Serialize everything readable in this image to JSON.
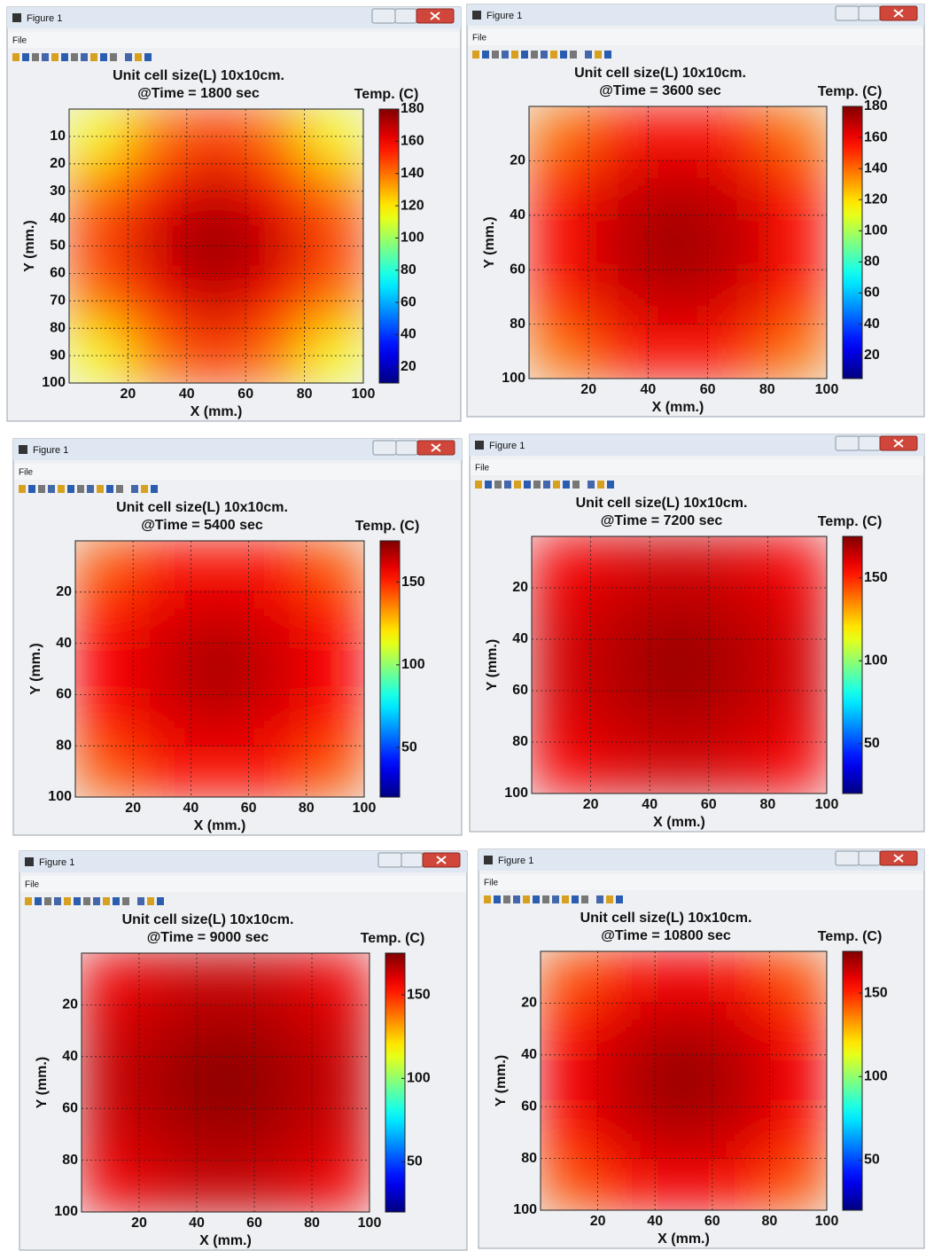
{
  "windows": [
    {
      "title": "Figure 1",
      "menu": "File"
    },
    {
      "title": "Figure 1",
      "menu": "File"
    },
    {
      "title": "Figure 1",
      "menu": "File"
    },
    {
      "title": "Figure 1",
      "menu": "File"
    },
    {
      "title": "Figure 1",
      "menu": "File"
    },
    {
      "title": "Figure 1",
      "menu": "File"
    }
  ],
  "chart_data": [
    {
      "type": "heatmap",
      "title": "Unit cell size(L) 10x10cm.",
      "subtitle": "@Time = 1800 sec",
      "xlabel": "X (mm.)",
      "ylabel": "Y (mm.)",
      "colorbar_label": "Temp. (C)",
      "colormap": "jet",
      "grid": true,
      "y_reversed": true,
      "x": [
        10,
        30,
        50,
        70,
        90
      ],
      "y": [
        10,
        30,
        50,
        70,
        90
      ],
      "z": [
        [
          115,
          140,
          150,
          140,
          115
        ],
        [
          140,
          160,
          168,
          160,
          140
        ],
        [
          150,
          168,
          178,
          168,
          150
        ],
        [
          140,
          160,
          168,
          160,
          140
        ],
        [
          115,
          140,
          150,
          140,
          115
        ]
      ],
      "xlim": [
        0,
        100
      ],
      "ylim": [
        0,
        100
      ],
      "xticks": [
        20,
        40,
        60,
        80,
        100
      ],
      "yticks": [
        10,
        20,
        30,
        40,
        50,
        60,
        70,
        80,
        90,
        100
      ],
      "clim": [
        10,
        180
      ],
      "cticks": [
        20,
        40,
        60,
        80,
        100,
        120,
        140,
        160,
        180
      ]
    },
    {
      "type": "heatmap",
      "title": "Unit cell size(L) 10x10cm.",
      "subtitle": "@Time = 3600 sec",
      "xlabel": "X (mm.)",
      "ylabel": "Y (mm.)",
      "colorbar_label": "Temp. (C)",
      "colormap": "jet",
      "grid": true,
      "y_reversed": true,
      "x": [
        10,
        30,
        50,
        70,
        90
      ],
      "y": [
        10,
        30,
        50,
        70,
        90
      ],
      "z": [
        [
          138,
          152,
          158,
          152,
          138
        ],
        [
          152,
          165,
          170,
          165,
          152
        ],
        [
          158,
          170,
          176,
          170,
          158
        ],
        [
          152,
          165,
          170,
          165,
          152
        ],
        [
          138,
          152,
          158,
          152,
          138
        ]
      ],
      "xlim": [
        0,
        100
      ],
      "ylim": [
        0,
        100
      ],
      "xticks": [
        20,
        40,
        60,
        80,
        100
      ],
      "yticks": [
        20,
        40,
        60,
        80,
        100
      ],
      "clim": [
        5,
        180
      ],
      "cticks": [
        20,
        40,
        60,
        80,
        100,
        120,
        140,
        160,
        180
      ]
    },
    {
      "type": "heatmap",
      "title": "Unit cell size(L) 10x10cm.",
      "subtitle": "@Time = 5400 sec",
      "xlabel": "X (mm.)",
      "ylabel": "Y (mm.)",
      "colorbar_label": "Temp. (C)",
      "colormap": "jet",
      "grid": true,
      "y_reversed": true,
      "x": [
        10,
        30,
        50,
        70,
        90
      ],
      "y": [
        10,
        30,
        50,
        70,
        90
      ],
      "z": [
        [
          142,
          152,
          155,
          152,
          142
        ],
        [
          152,
          160,
          164,
          160,
          152
        ],
        [
          155,
          164,
          170,
          164,
          155
        ],
        [
          152,
          160,
          164,
          160,
          152
        ],
        [
          142,
          152,
          155,
          152,
          142
        ]
      ],
      "xlim": [
        0,
        100
      ],
      "ylim": [
        0,
        100
      ],
      "xticks": [
        20,
        40,
        60,
        80,
        100
      ],
      "yticks": [
        20,
        40,
        60,
        80,
        100
      ],
      "clim": [
        20,
        175
      ],
      "cticks": [
        50,
        100,
        150
      ]
    },
    {
      "type": "heatmap",
      "title": "Unit cell size(L) 10x10cm.",
      "subtitle": "@Time = 7200 sec",
      "xlabel": "X (mm.)",
      "ylabel": "Y (mm.)",
      "colorbar_label": "Temp. (C)",
      "colormap": "jet",
      "grid": true,
      "y_reversed": true,
      "x": [
        10,
        30,
        50,
        70,
        90
      ],
      "y": [
        10,
        30,
        50,
        70,
        90
      ],
      "z": [
        [
          155,
          160,
          162,
          160,
          155
        ],
        [
          160,
          165,
          168,
          165,
          160
        ],
        [
          162,
          168,
          172,
          168,
          162
        ],
        [
          160,
          165,
          168,
          165,
          160
        ],
        [
          155,
          160,
          162,
          160,
          155
        ]
      ],
      "xlim": [
        0,
        100
      ],
      "ylim": [
        0,
        100
      ],
      "xticks": [
        20,
        40,
        60,
        80,
        100
      ],
      "yticks": [
        20,
        40,
        60,
        80,
        100
      ],
      "clim": [
        20,
        175
      ],
      "cticks": [
        50,
        100,
        150
      ]
    },
    {
      "type": "heatmap",
      "title": "Unit cell size(L) 10x10cm.",
      "subtitle": "@Time = 9000 sec",
      "xlabel": "X (mm.)",
      "ylabel": "Y (mm.)",
      "colorbar_label": "Temp. (C)",
      "colormap": "jet",
      "grid": true,
      "y_reversed": true,
      "x": [
        10,
        30,
        50,
        70,
        90
      ],
      "y": [
        10,
        30,
        50,
        70,
        90
      ],
      "z": [
        [
          157,
          162,
          164,
          162,
          157
        ],
        [
          162,
          167,
          170,
          167,
          162
        ],
        [
          164,
          170,
          174,
          170,
          164
        ],
        [
          162,
          167,
          170,
          167,
          162
        ],
        [
          157,
          162,
          164,
          162,
          157
        ]
      ],
      "xlim": [
        0,
        100
      ],
      "ylim": [
        0,
        100
      ],
      "xticks": [
        20,
        40,
        60,
        80,
        100
      ],
      "yticks": [
        20,
        40,
        60,
        80,
        100
      ],
      "clim": [
        20,
        175
      ],
      "cticks": [
        50,
        100,
        150
      ]
    },
    {
      "type": "heatmap",
      "title": "Unit cell size(L) 10x10cm.",
      "subtitle": "@Time = 10800 sec",
      "xlabel": "X (mm.)",
      "ylabel": "Y (mm.)",
      "colorbar_label": "Temp. (C)",
      "colormap": "jet",
      "grid": true,
      "y_reversed": true,
      "x": [
        10,
        30,
        50,
        70,
        90
      ],
      "y": [
        10,
        30,
        50,
        70,
        90
      ],
      "z": [
        [
          143,
          153,
          157,
          153,
          143
        ],
        [
          153,
          163,
          167,
          163,
          153
        ],
        [
          157,
          167,
          173,
          167,
          157
        ],
        [
          153,
          163,
          167,
          163,
          153
        ],
        [
          143,
          153,
          157,
          153,
          143
        ]
      ],
      "xlim": [
        0,
        100
      ],
      "ylim": [
        0,
        100
      ],
      "xticks": [
        20,
        40,
        60,
        80,
        100
      ],
      "yticks": [
        20,
        40,
        60,
        80,
        100
      ],
      "clim": [
        20,
        175
      ],
      "cticks": [
        50,
        100,
        150
      ]
    }
  ]
}
